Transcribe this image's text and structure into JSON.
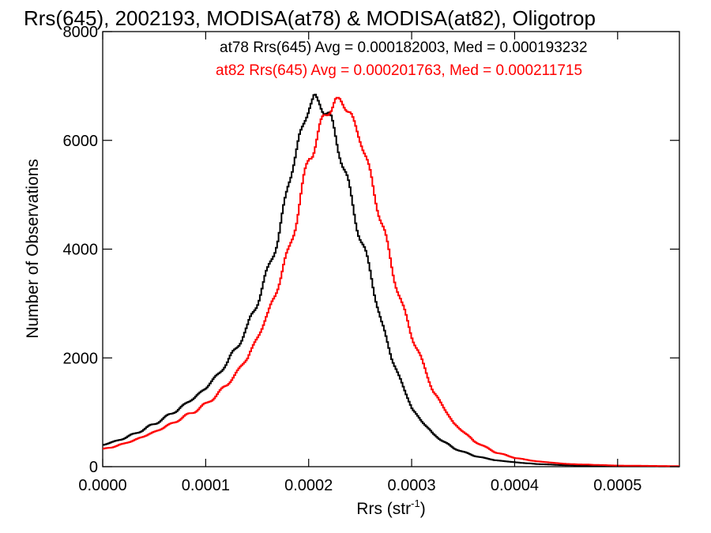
{
  "chart_data": {
    "type": "line",
    "title": "Rrs(645), 2002193, MODISA(at78) & MODISA(at82), Oligotrop",
    "xlabel": "Rrs (str",
    "xlabel_sup": "-1",
    "xlabel_close": ")",
    "ylabel": "Number of Observations",
    "xlim": [
      0.0,
      0.00056
    ],
    "ylim": [
      0,
      8000
    ],
    "grid": false,
    "legend_placement": "top-right",
    "x_ticks": [
      0.0,
      0.0001,
      0.0002,
      0.0003,
      0.0004,
      0.0005
    ],
    "x_tick_labels": [
      "0.0000",
      "0.0001",
      "0.0002",
      "0.0003",
      "0.0004",
      "0.0005"
    ],
    "y_ticks": [
      0,
      2000,
      4000,
      6000,
      8000
    ],
    "y_tick_labels": [
      "0",
      "2000",
      "4000",
      "6000",
      "8000"
    ],
    "annotations": [
      {
        "text": "at78 Rrs(645) Avg = 0.000182003, Med = 0.000193232",
        "color": "#000000"
      },
      {
        "text": "at82 Rrs(645) Avg = 0.000201763, Med = 0.000211715",
        "color": "#ff0000"
      }
    ],
    "series": [
      {
        "color": "#000000",
        "x": [
          0.0,
          2e-05,
          4e-05,
          6e-05,
          8e-05,
          0.0001,
          0.00012,
          0.00014,
          0.00016,
          0.00017,
          0.00018,
          0.00019,
          0.0002,
          0.000205,
          0.00021,
          0.00022,
          0.00023,
          0.00024,
          0.00025,
          0.00026,
          0.00027,
          0.00028,
          0.0003,
          0.00032,
          0.00034,
          0.00036,
          0.00038,
          0.0004,
          0.00042,
          0.00045,
          0.0005,
          0.00056
        ],
        "y": [
          400,
          520,
          690,
          900,
          1150,
          1450,
          1900,
          2550,
          3600,
          4250,
          5200,
          6050,
          6600,
          6800,
          6700,
          6400,
          5800,
          4950,
          4200,
          3500,
          2650,
          2000,
          1050,
          600,
          340,
          200,
          120,
          80,
          50,
          25,
          10,
          5
        ]
      },
      {
        "color": "#ff0000",
        "x": [
          0.0,
          2e-05,
          4e-05,
          6e-05,
          8e-05,
          0.0001,
          0.00012,
          0.00014,
          0.00016,
          0.00018,
          0.00019,
          0.0002,
          0.00021,
          0.00022,
          0.000225,
          0.00023,
          0.00024,
          0.00025,
          0.00026,
          0.00027,
          0.00028,
          0.00029,
          0.0003,
          0.00032,
          0.00034,
          0.00036,
          0.00038,
          0.0004,
          0.00042,
          0.00045,
          0.0005,
          0.00056
        ],
        "y": [
          320,
          420,
          560,
          730,
          930,
          1150,
          1500,
          2000,
          2800,
          3950,
          4800,
          5700,
          6200,
          6600,
          6750,
          6700,
          6500,
          6000,
          5300,
          4500,
          3700,
          2950,
          2400,
          1400,
          800,
          470,
          270,
          160,
          100,
          50,
          20,
          10
        ]
      }
    ]
  }
}
